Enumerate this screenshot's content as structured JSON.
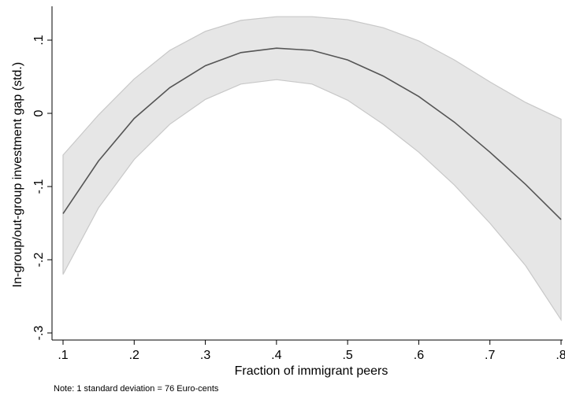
{
  "chart_data": {
    "type": "line",
    "xlabel": "Fraction of immigrant peers",
    "ylabel": "In-group/out-group investment gap (std.)",
    "xlim": [
      0.1,
      0.8
    ],
    "ylim": [
      -0.3,
      0.14
    ],
    "x_ticks": [
      0.1,
      0.2,
      0.3,
      0.4,
      0.5,
      0.6,
      0.7,
      0.8
    ],
    "x_tick_labels": [
      ".1",
      ".2",
      ".3",
      ".4",
      ".5",
      ".6",
      ".7",
      ".8"
    ],
    "y_ticks": [
      -0.3,
      -0.2,
      -0.1,
      0,
      0.1
    ],
    "y_tick_labels": [
      "-.3",
      "-.2",
      "-.1",
      "0",
      ".1"
    ],
    "grid": false,
    "x": [
      0.1,
      0.15,
      0.2,
      0.25,
      0.3,
      0.35,
      0.4,
      0.45,
      0.5,
      0.55,
      0.6,
      0.65,
      0.7,
      0.75,
      0.8
    ],
    "y": [
      -0.137,
      -0.065,
      -0.007,
      0.035,
      0.065,
      0.083,
      0.089,
      0.086,
      0.073,
      0.051,
      0.023,
      -0.012,
      -0.053,
      -0.097,
      -0.145
    ],
    "lower": [
      -0.22,
      -0.129,
      -0.063,
      -0.015,
      0.019,
      0.04,
      0.046,
      0.04,
      0.018,
      -0.015,
      -0.053,
      -0.098,
      -0.15,
      -0.208,
      -0.282
    ],
    "upper": [
      -0.057,
      -0.002,
      0.047,
      0.086,
      0.112,
      0.127,
      0.132,
      0.132,
      0.128,
      0.117,
      0.099,
      0.073,
      0.043,
      0.015,
      -0.008
    ],
    "colors": {
      "line": "#555555",
      "band_fill": "#e6e6e6",
      "band_edge": "#c8c8c8",
      "axis": "#000000"
    }
  },
  "note": "Note: 1 standard deviation = 76 Euro-cents"
}
